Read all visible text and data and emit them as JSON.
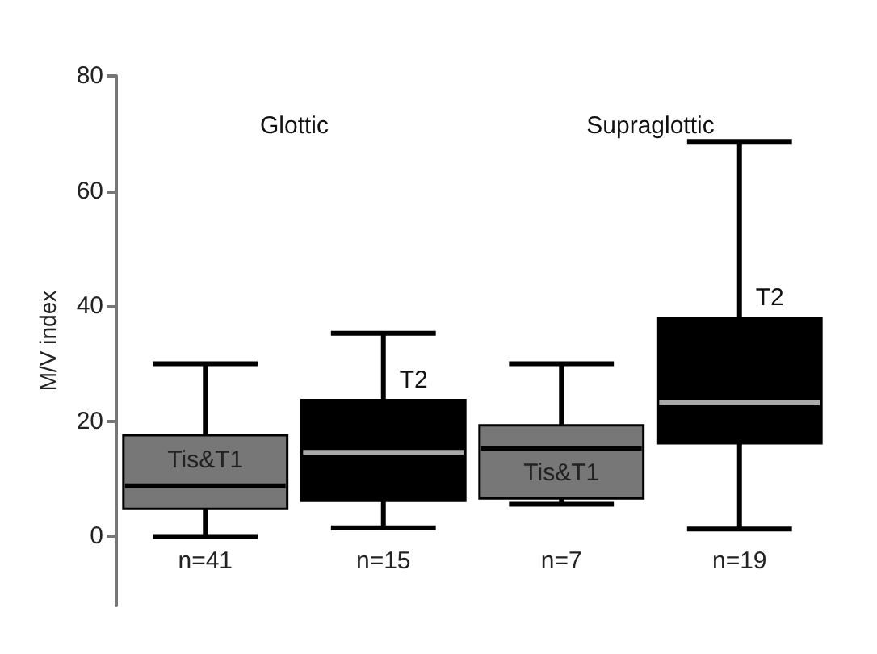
{
  "chart_data": {
    "type": "box",
    "ylabel": "M/V index",
    "ylim": [
      -12,
      80
    ],
    "yticks": [
      0,
      20,
      40,
      60,
      80
    ],
    "grid": false,
    "categories": [
      "n=41",
      "n=15",
      "n=7",
      "n=19"
    ],
    "annotations": [
      "Glottic",
      "Supraglottic"
    ],
    "series": [
      {
        "name": "Tis&T1",
        "color": "#777777",
        "boxes": [
          {
            "low": 0,
            "q1": 4.8,
            "median": 8.8,
            "q3": 17.6,
            "high": 30
          },
          null,
          {
            "low": 5.6,
            "q1": 6.6,
            "median": 15.3,
            "q3": 19.3,
            "high": 30
          },
          null
        ]
      },
      {
        "name": "T2",
        "color": "#000000",
        "boxes": [
          null,
          {
            "low": 1.5,
            "q1": 6.2,
            "median": 14.6,
            "q3": 23.7,
            "high": 35.3
          },
          null,
          {
            "low": 1.3,
            "q1": 16.2,
            "median": 23.2,
            "q3": 38,
            "high": 68.6
          }
        ]
      }
    ]
  }
}
